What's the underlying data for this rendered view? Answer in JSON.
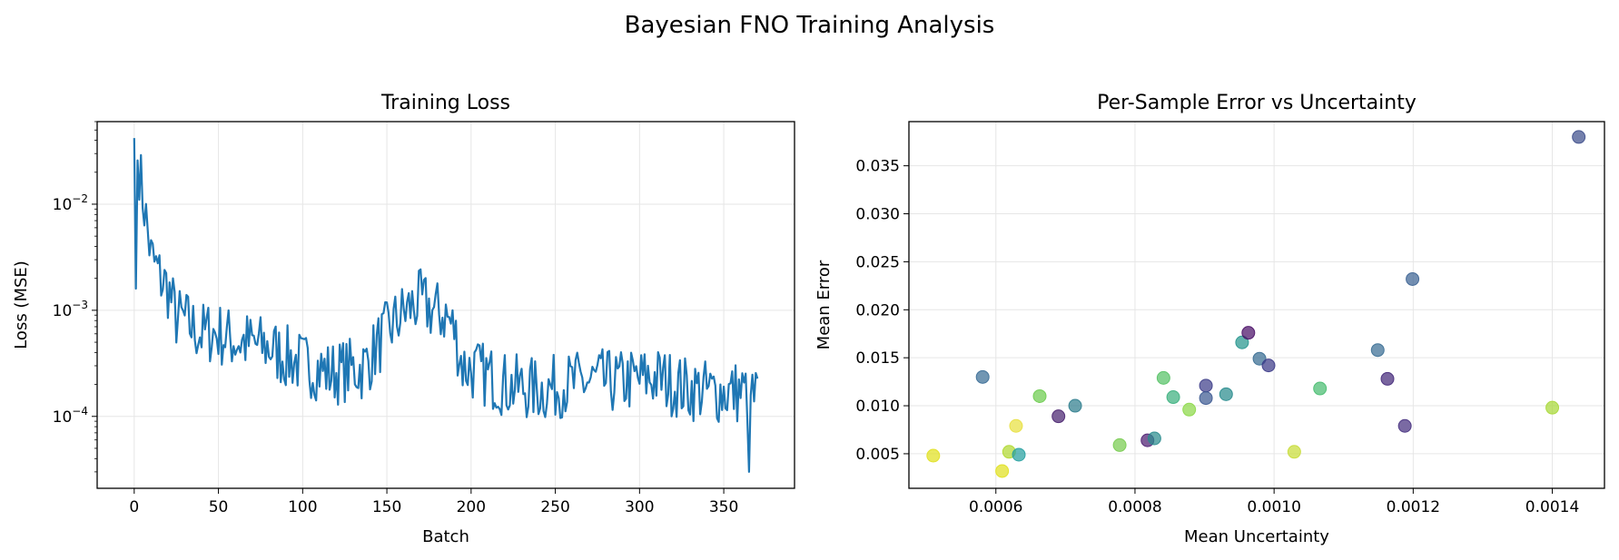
{
  "figure": {
    "title": "Bayesian FNO Training Analysis"
  },
  "chart_data": [
    {
      "type": "line",
      "title": "Training Loss",
      "xlabel": "Batch",
      "ylabel": "Loss (MSE)",
      "yscale": "log",
      "xlim": [
        -22,
        392
      ],
      "ylim": [
        2.1e-05,
        0.06
      ],
      "grid": true,
      "xticks": [
        0,
        50,
        100,
        150,
        200,
        250,
        300,
        350
      ],
      "xtick_labels": [
        "0",
        "50",
        "100",
        "150",
        "200",
        "250",
        "300",
        "350"
      ],
      "yticks": [
        0.0001,
        0.001,
        0.01
      ],
      "ytick_labels": [
        [
          "10",
          "−4"
        ],
        [
          "10",
          "−3"
        ],
        [
          "10",
          "−2"
        ]
      ],
      "color": "#1f77b4",
      "series": [
        {
          "x_start": 0,
          "x_step": 5,
          "values": [
            0.042,
            0.0125,
            0.0032,
            0.0021,
            0.0016,
            0.00085,
            0.0008,
            0.00068,
            0.0006,
            0.00062,
            0.0006,
            0.00055,
            0.00052,
            0.0005,
            0.00048,
            0.00046,
            0.00045,
            0.0004,
            0.00036,
            0.00034,
            0.00031,
            0.0003,
            0.00028,
            0.00026,
            0.00026,
            0.00027,
            0.00028,
            0.00028,
            0.00035,
            0.00048,
            0.00062,
            0.00078,
            0.00095,
            0.0011,
            0.0012,
            0.00105,
            0.00095,
            0.0009,
            0.00065,
            0.0003,
            0.00028,
            0.00026,
            0.00024,
            0.00022,
            0.0002,
            0.00019,
            0.00019,
            0.00018,
            0.00018,
            0.00018,
            0.00019,
            0.0002,
            0.0002,
            0.00021,
            0.00021,
            0.00022,
            0.00021,
            0.00021,
            0.00021,
            0.00022,
            0.00022,
            0.00023,
            0.00023,
            0.00022,
            0.0002,
            0.00019,
            0.00018,
            0.00018,
            0.00017,
            0.00017,
            0.00017,
            0.00017,
            0.00017,
            0.00016,
            0.00015
          ]
        }
      ]
    },
    {
      "type": "scatter",
      "title": "Per-Sample Error vs Uncertainty",
      "xlabel": "Mean Uncertainty",
      "ylabel": "Mean Error",
      "xlim": [
        0.000475,
        0.001475
      ],
      "ylim": [
        0.0014,
        0.0396
      ],
      "grid": true,
      "xticks": [
        0.0006,
        0.0008,
        0.001,
        0.0012,
        0.0014
      ],
      "xtick_labels": [
        "0.0006",
        "0.0008",
        "0.0010",
        "0.0012",
        "0.0014"
      ],
      "yticks": [
        0.005,
        0.01,
        0.015,
        0.02,
        0.025,
        0.03,
        0.035
      ],
      "ytick_labels": [
        "0.005",
        "0.010",
        "0.015",
        "0.020",
        "0.025",
        "0.030",
        "0.035"
      ],
      "points": [
        {
          "x": 0.00051,
          "y": 0.0048,
          "color": "#e0e020"
        },
        {
          "x": 0.000581,
          "y": 0.013,
          "color": "#3a6d96"
        },
        {
          "x": 0.000609,
          "y": 0.0032,
          "color": "#e0e020"
        },
        {
          "x": 0.000619,
          "y": 0.0052,
          "color": "#b0d830"
        },
        {
          "x": 0.000629,
          "y": 0.0079,
          "color": "#e8e040"
        },
        {
          "x": 0.000633,
          "y": 0.0049,
          "color": "#25a0a0"
        },
        {
          "x": 0.000663,
          "y": 0.011,
          "color": "#6ccc4e"
        },
        {
          "x": 0.00069,
          "y": 0.0089,
          "color": "#4a2470"
        },
        {
          "x": 0.000714,
          "y": 0.01,
          "color": "#2f7e8e"
        },
        {
          "x": 0.000778,
          "y": 0.0059,
          "color": "#78cc50"
        },
        {
          "x": 0.000818,
          "y": 0.0064,
          "color": "#4e1e72"
        },
        {
          "x": 0.000828,
          "y": 0.0066,
          "color": "#2a8c8e"
        },
        {
          "x": 0.000841,
          "y": 0.0129,
          "color": "#56c266"
        },
        {
          "x": 0.000855,
          "y": 0.0109,
          "color": "#3bb07e"
        },
        {
          "x": 0.000878,
          "y": 0.0096,
          "color": "#8cd848"
        },
        {
          "x": 0.000902,
          "y": 0.0121,
          "color": "#3f3f8a"
        },
        {
          "x": 0.000902,
          "y": 0.0108,
          "color": "#3d5a92"
        },
        {
          "x": 0.000931,
          "y": 0.0112,
          "color": "#2a8c8e"
        },
        {
          "x": 0.000954,
          "y": 0.0166,
          "color": "#26958e"
        },
        {
          "x": 0.000963,
          "y": 0.0176,
          "color": "#4b1068"
        },
        {
          "x": 0.000979,
          "y": 0.0149,
          "color": "#376c92"
        },
        {
          "x": 0.000992,
          "y": 0.0142,
          "color": "#3b3a88"
        },
        {
          "x": 0.001029,
          "y": 0.0052,
          "color": "#c8dc38"
        },
        {
          "x": 0.001066,
          "y": 0.0118,
          "color": "#48bc70"
        },
        {
          "x": 0.001149,
          "y": 0.0158,
          "color": "#3a6e94"
        },
        {
          "x": 0.001163,
          "y": 0.0128,
          "color": "#452a7a"
        },
        {
          "x": 0.001188,
          "y": 0.0079,
          "color": "#463080"
        },
        {
          "x": 0.001199,
          "y": 0.0232,
          "color": "#3d6494"
        },
        {
          "x": 0.0014,
          "y": 0.0098,
          "color": "#a8d838"
        },
        {
          "x": 0.001438,
          "y": 0.038,
          "color": "#3f4f8c"
        }
      ]
    }
  ]
}
